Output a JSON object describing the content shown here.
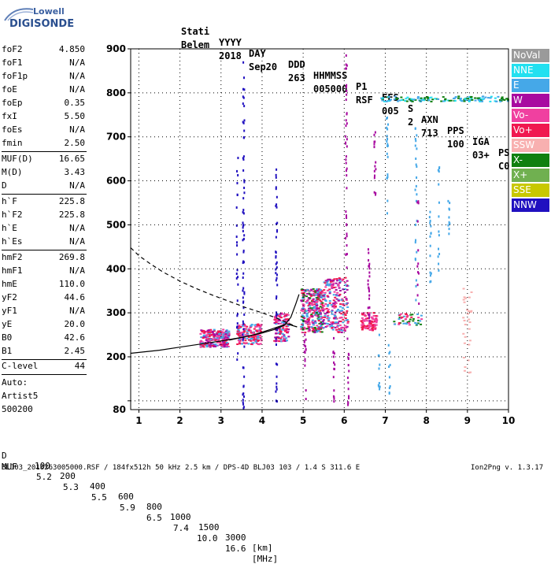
{
  "header": {
    "brand_top": "Lowell",
    "brand_bottom": "DIGISONDE",
    "labels": [
      "Stati",
      "YYYY",
      "DAY",
      "DDD",
      "HHMMSS",
      "P1",
      "FFS",
      "S",
      "AXN",
      "PPS",
      "IGA",
      "PS"
    ],
    "values": [
      "Belem",
      "2018",
      "Sep20",
      "263",
      "005000",
      "RSF",
      "005",
      "2",
      "713",
      "100",
      "03+",
      "C0"
    ]
  },
  "params": [
    {
      "name": "foF2",
      "value": "4.850"
    },
    {
      "name": "foF1",
      "value": "N/A"
    },
    {
      "name": "foF1p",
      "value": "N/A"
    },
    {
      "name": "foE",
      "value": "N/A"
    },
    {
      "name": "foEp",
      "value": "0.35"
    },
    {
      "name": "fxI",
      "value": "5.50"
    },
    {
      "name": "foEs",
      "value": "N/A"
    },
    {
      "name": "fmin",
      "value": "2.50"
    },
    {
      "name": "MUF(D)",
      "value": "16.65"
    },
    {
      "name": "M(D)",
      "value": "3.43"
    },
    {
      "name": "D",
      "value": "N/A"
    },
    {
      "name": "h`F",
      "value": "225.8"
    },
    {
      "name": "h`F2",
      "value": "225.8"
    },
    {
      "name": "h`E",
      "value": "N/A"
    },
    {
      "name": "h`Es",
      "value": "N/A"
    },
    {
      "name": "hmF2",
      "value": "269.8"
    },
    {
      "name": "hmF1",
      "value": "N/A"
    },
    {
      "name": "hmE",
      "value": "110.0"
    },
    {
      "name": "yF2",
      "value": "44.6"
    },
    {
      "name": "yF1",
      "value": "N/A"
    },
    {
      "name": "yE",
      "value": "20.0"
    },
    {
      "name": "B0",
      "value": "42.6"
    },
    {
      "name": "B1",
      "value": "2.45"
    },
    {
      "name": "C-level",
      "value": "44"
    }
  ],
  "auto": {
    "line1": "Auto:",
    "line2": "Artist5",
    "line3": "500200"
  },
  "legend": [
    {
      "label": "NoVal",
      "color": "#9a9a9a"
    },
    {
      "label": "NNE",
      "color": "#22e0f0"
    },
    {
      "label": "E",
      "color": "#45a8e8"
    },
    {
      "label": "W",
      "color": "#a80aa0"
    },
    {
      "label": "Vo-",
      "color": "#f040a0"
    },
    {
      "label": "Vo+",
      "color": "#f01850"
    },
    {
      "label": "SSW",
      "color": "#f8b0b0"
    },
    {
      "label": "X-",
      "color": "#108010"
    },
    {
      "label": "X+",
      "color": "#70b050"
    },
    {
      "label": "SSE",
      "color": "#c8c800"
    },
    {
      "label": "NNW",
      "color": "#2010c0"
    }
  ],
  "footer": {
    "row1_label": "D",
    "row1_values": [
      "100",
      "200",
      "400",
      "600",
      "800",
      "1000",
      "1500",
      "3000",
      "[km]"
    ],
    "row2_label": "MUF",
    "row2_values": [
      "5.2",
      "5.3",
      "5.5",
      "5.9",
      "6.5",
      "7.4",
      "10.0",
      "16.6",
      "[MHz]"
    ],
    "file_info": "BLJ03_2018263005000.RSF / 184fx512h 50 kHz 2.5 km / DPS-4D BLJ03 103 / 1.4 S 311.6 E",
    "version": "Ion2Png v. 1.3.17"
  },
  "chart_data": {
    "type": "scatter",
    "title": "",
    "xlabel": "",
    "ylabel": "",
    "xlim": [
      0.8,
      10.0
    ],
    "ylim": [
      80,
      900
    ],
    "x_ticks": [
      1,
      2,
      3,
      4,
      5,
      6,
      7,
      8,
      9,
      10
    ],
    "y_ticks": [
      100,
      200,
      300,
      400,
      500,
      600,
      700,
      800,
      900
    ],
    "y_tick_labels": [
      "",
      "200",
      "300",
      "400",
      "500",
      "600",
      "700",
      "800",
      "900"
    ],
    "x_extra_label": "",
    "grid": true,
    "legend_position": "right",
    "curves": [
      {
        "name": "trace",
        "style": "solid",
        "points": [
          [
            0.8,
            208
          ],
          [
            1.5,
            215
          ],
          [
            2.0,
            222
          ],
          [
            2.5,
            229
          ],
          [
            3.0,
            236
          ],
          [
            3.5,
            244
          ],
          [
            4.0,
            254
          ],
          [
            4.3,
            262
          ],
          [
            4.55,
            272
          ],
          [
            4.7,
            290
          ],
          [
            4.82,
            320
          ],
          [
            4.9,
            342
          ]
        ]
      },
      {
        "name": "trace2",
        "style": "solid",
        "points": [
          [
            3.2,
            238
          ],
          [
            3.8,
            250
          ],
          [
            4.2,
            262
          ],
          [
            4.6,
            275
          ],
          [
            4.85,
            268
          ]
        ]
      },
      {
        "name": "trace3",
        "style": "dashed",
        "points": [
          [
            0.8,
            448
          ],
          [
            1.0,
            430
          ],
          [
            1.3,
            410
          ],
          [
            1.6,
            392
          ],
          [
            2.0,
            372
          ],
          [
            2.4,
            355
          ],
          [
            2.8,
            340
          ],
          [
            3.2,
            326
          ],
          [
            3.6,
            312
          ],
          [
            4.0,
            300
          ],
          [
            4.3,
            290
          ],
          [
            4.6,
            278
          ],
          [
            4.85,
            268
          ]
        ]
      }
    ],
    "clusters": [
      {
        "x": [
          2.5,
          3.2
        ],
        "y": [
          222,
          262
        ],
        "colors": [
          "#f01850",
          "#f040a0",
          "#a80aa0",
          "#45a8e8"
        ],
        "n": 260
      },
      {
        "x": [
          3.4,
          4.0
        ],
        "y": [
          228,
          275
        ],
        "colors": [
          "#f01850",
          "#f040a0",
          "#45a8e8"
        ],
        "n": 170
      },
      {
        "x": [
          4.3,
          4.65
        ],
        "y": [
          235,
          300
        ],
        "colors": [
          "#f01850",
          "#f040a0",
          "#45a8e8",
          "#a80aa0"
        ],
        "n": 130
      },
      {
        "x": [
          4.95,
          5.5
        ],
        "y": [
          255,
          355
        ],
        "colors": [
          "#f01850",
          "#f040a0",
          "#45a8e8",
          "#108010",
          "#a80aa0"
        ],
        "n": 320
      },
      {
        "x": [
          5.5,
          6.1
        ],
        "y": [
          255,
          380
        ],
        "colors": [
          "#f01850",
          "#f040a0",
          "#a80aa0",
          "#45a8e8"
        ],
        "n": 230
      },
      {
        "x": [
          6.4,
          6.8
        ],
        "y": [
          260,
          300
        ],
        "colors": [
          "#f01850",
          "#f040a0"
        ],
        "n": 90
      },
      {
        "x": [
          7.2,
          7.9
        ],
        "y": [
          272,
          298
        ],
        "colors": [
          "#f01850",
          "#f040a0",
          "#108010",
          "#45a8e8"
        ],
        "n": 45
      },
      {
        "x": [
          6.9,
          10.0
        ],
        "y": [
          780,
          792
        ],
        "colors": [
          "#45a8e8",
          "#22e0f0",
          "#108010"
        ],
        "n": 140
      },
      {
        "x": [
          8.9,
          9.1
        ],
        "y": [
          150,
          360
        ],
        "colors": [
          "#f8b0b0"
        ],
        "n": 30
      }
    ],
    "columns": [
      {
        "x": 3.55,
        "y": [
          80,
          880
        ],
        "color": "#2010c0",
        "n": 70
      },
      {
        "x": 3.4,
        "y": [
          150,
          660
        ],
        "color": "#2010c0",
        "n": 25
      },
      {
        "x": 4.35,
        "y": [
          80,
          640
        ],
        "color": "#2010c0",
        "n": 45
      },
      {
        "x": 6.05,
        "y": [
          400,
          890
        ],
        "color": "#a80aa0",
        "n": 40
      },
      {
        "x": 6.6,
        "y": [
          280,
          460
        ],
        "color": "#a80aa0",
        "n": 25
      },
      {
        "x": 6.75,
        "y": [
          560,
          720
        ],
        "color": "#a80aa0",
        "n": 15
      },
      {
        "x": 7.05,
        "y": [
          520,
          760
        ],
        "color": "#45a8e8",
        "n": 20
      },
      {
        "x": 7.75,
        "y": [
          320,
          720
        ],
        "color": "#45a8e8",
        "n": 25
      },
      {
        "x": 7.8,
        "y": [
          320,
          560
        ],
        "color": "#a80aa0",
        "n": 12
      },
      {
        "x": 8.1,
        "y": [
          360,
          620
        ],
        "color": "#45a8e8",
        "n": 15
      },
      {
        "x": 8.3,
        "y": [
          380,
          640
        ],
        "color": "#45a8e8",
        "n": 14
      },
      {
        "x": 8.55,
        "y": [
          460,
          560
        ],
        "color": "#45a8e8",
        "n": 10
      },
      {
        "x": 5.05,
        "y": [
          100,
          250
        ],
        "color": "#a80aa0",
        "n": 15
      },
      {
        "x": 5.75,
        "y": [
          90,
          250
        ],
        "color": "#a80aa0",
        "n": 15
      },
      {
        "x": 6.1,
        "y": [
          90,
          250
        ],
        "color": "#a80aa0",
        "n": 15
      },
      {
        "x": 6.85,
        "y": [
          90,
          250
        ],
        "color": "#45a8e8",
        "n": 10
      },
      {
        "x": 7.1,
        "y": [
          100,
          250
        ],
        "color": "#45a8e8",
        "n": 10
      }
    ]
  }
}
